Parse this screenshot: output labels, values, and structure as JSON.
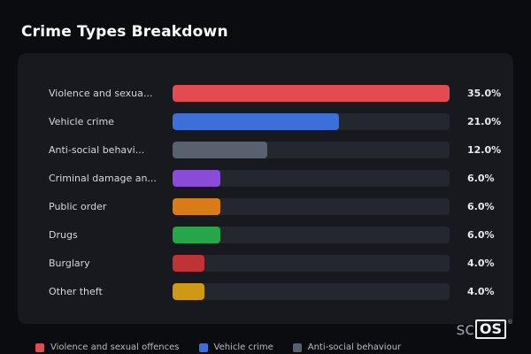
{
  "page": {
    "title": "Crime Types Breakdown",
    "background_color": "#0b0c10",
    "card_color": "#17191f",
    "track_color": "#24272d"
  },
  "chart_data": {
    "type": "bar",
    "orientation": "horizontal",
    "title": "Crime Types Breakdown",
    "xlabel": "",
    "ylabel": "",
    "xlim": [
      0,
      35
    ],
    "max_value": 35,
    "grid": false,
    "legend_position": "bottom",
    "categories": [
      "Violence and sexua...",
      "Vehicle crime",
      "Anti-social behavi...",
      "Criminal damage an...",
      "Public order",
      "Drugs",
      "Burglary",
      "Other theft"
    ],
    "values": [
      35.0,
      21.0,
      12.0,
      6.0,
      6.0,
      6.0,
      4.0,
      4.0
    ],
    "value_labels": [
      "35.0%",
      "21.0%",
      "12.0%",
      "6.0%",
      "6.0%",
      "6.0%",
      "4.0%",
      "4.0%"
    ],
    "colors": [
      "#e24b4f",
      "#3d6fd8",
      "#59616e",
      "#8a4cd6",
      "#d97b17",
      "#27a649",
      "#bf3336",
      "#cf9913"
    ]
  },
  "legend": {
    "items": [
      {
        "label": "Violence and sexual offences",
        "color": "#e24b4f"
      },
      {
        "label": "Vehicle crime",
        "color": "#3d6fd8"
      },
      {
        "label": "Anti-social behaviour",
        "color": "#59616e"
      }
    ]
  },
  "branding": {
    "prefix": "sc",
    "suffix": "OS",
    "reg": "®"
  }
}
